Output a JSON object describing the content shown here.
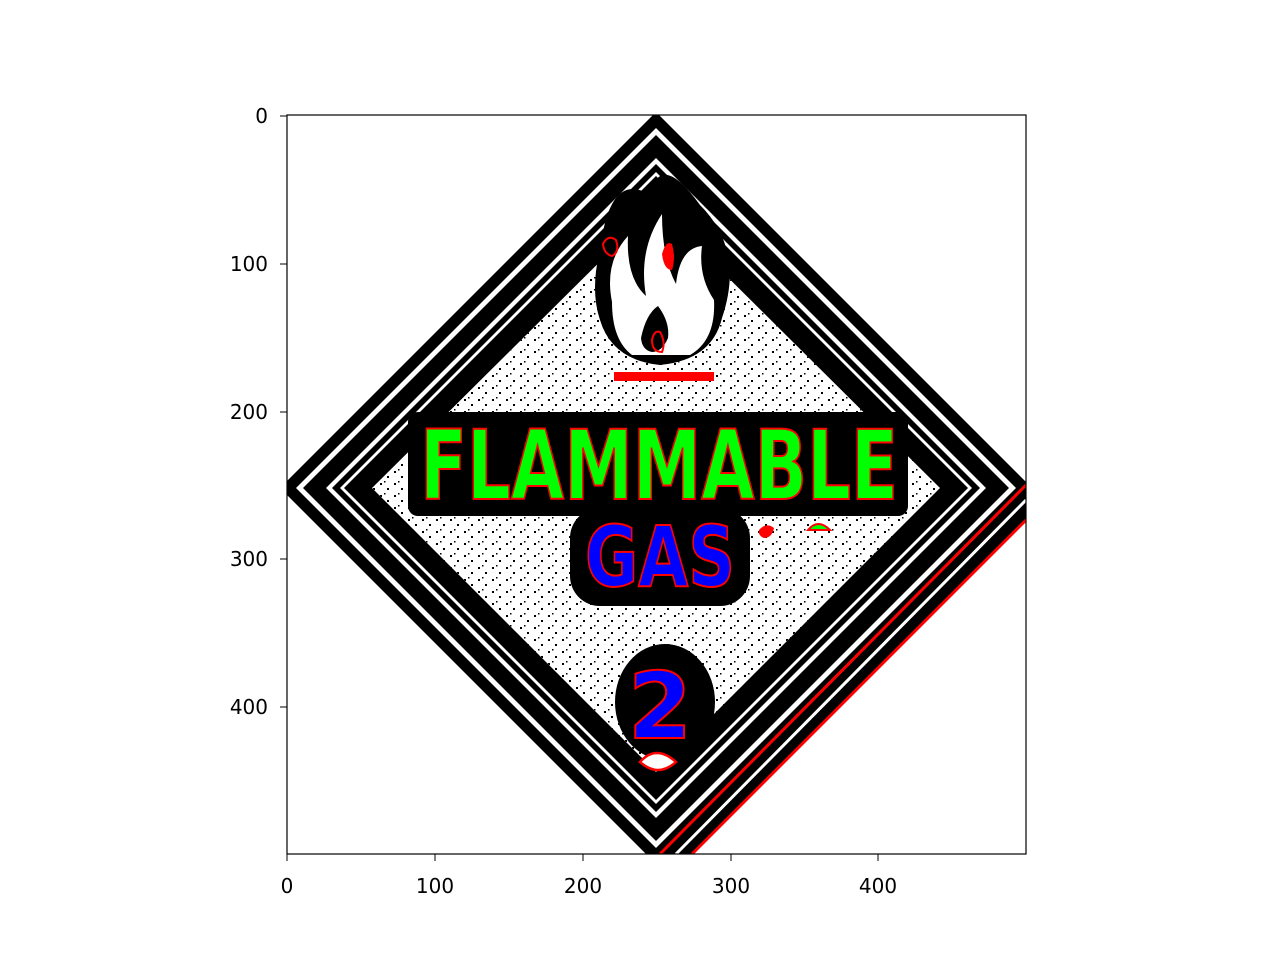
{
  "figure": {
    "x_ticks": [
      "0",
      "100",
      "200",
      "300",
      "400"
    ],
    "y_ticks": [
      "0",
      "100",
      "200",
      "300",
      "400"
    ],
    "image": {
      "extent": [
        0,
        499
      ],
      "sign_text_line1": "FLAMMABLE",
      "sign_text_line2": "GAS",
      "sign_class_number": "2"
    },
    "colors": {
      "background": "#ffffff",
      "ink": "#000000",
      "contour": "#ff0000",
      "fill_green": "#00ff00",
      "fill_blue": "#0000ff"
    }
  }
}
